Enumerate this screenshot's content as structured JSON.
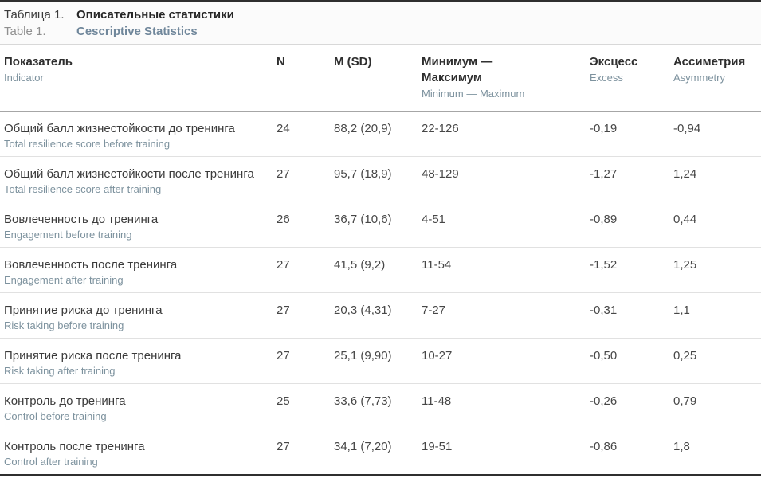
{
  "colors": {
    "text_dark": "#3b3b3b",
    "text_translation": "#7d929e",
    "caption_en_title": "#70879b",
    "border_dark": "#2f2f2f"
  },
  "caption": {
    "ru_label": "Таблица 1.",
    "ru_title": "Описательные статистики",
    "en_label": "Table 1.",
    "en_title": "Cescriptive Statistics"
  },
  "header": {
    "indicator_ru": "Показатель",
    "indicator_en": "Indicator",
    "n": "N",
    "m_sd": "M (SD)",
    "min_max_ru": "Минимум — Максимум",
    "min_max_en": "Minimum — Maximum",
    "excess_ru": "Эксцесс",
    "excess_en": "Excess",
    "asymmetry_ru": "Ассиметрия",
    "asymmetry_en": "Asymmetry"
  },
  "rows": [
    {
      "ru": "Общий балл жизнестойкости до тренинга",
      "en": "Total resilience score before training",
      "n": "24",
      "m_sd": "88,2 (20,9)",
      "min_max": "22-126",
      "excess": "-0,19",
      "asymmetry": "-0,94"
    },
    {
      "ru": "Общий балл жизнестойкости после тренинга",
      "en": "Total resilience score after training",
      "n": "27",
      "m_sd": "95,7 (18,9)",
      "min_max": "48-129",
      "excess": "-1,27",
      "asymmetry": "1,24"
    },
    {
      "ru": "Вовлеченность до тренинга",
      "en": "Engagement before training",
      "n": "26",
      "m_sd": "36,7 (10,6)",
      "min_max": "4-51",
      "excess": "-0,89",
      "asymmetry": "0,44"
    },
    {
      "ru": "Вовлеченность после тренинга",
      "en": "Engagement after training",
      "n": "27",
      "m_sd": "41,5 (9,2)",
      "min_max": "11-54",
      "excess": "-1,52",
      "asymmetry": "1,25"
    },
    {
      "ru": "Принятие риска до тренинга",
      "en": "Risk taking before training",
      "n": "27",
      "m_sd": "20,3 (4,31)",
      "min_max": "7-27",
      "excess": "-0,31",
      "asymmetry": "1,1"
    },
    {
      "ru": "Принятие риска после тренинга",
      "en": "Risk taking after training",
      "n": "27",
      "m_sd": "25,1 (9,90)",
      "min_max": "10-27",
      "excess": "-0,50",
      "asymmetry": "0,25"
    },
    {
      "ru": "Контроль до тренинга",
      "en": "Control before training",
      "n": "25",
      "m_sd": "33,6 (7,73)",
      "min_max": "11-48",
      "excess": "-0,26",
      "asymmetry": "0,79"
    },
    {
      "ru": "Контроль после тренинга",
      "en": "Control after training",
      "n": "27",
      "m_sd": "34,1 (7,20)",
      "min_max": "19-51",
      "excess": "-0,86",
      "asymmetry": "1,8"
    }
  ]
}
